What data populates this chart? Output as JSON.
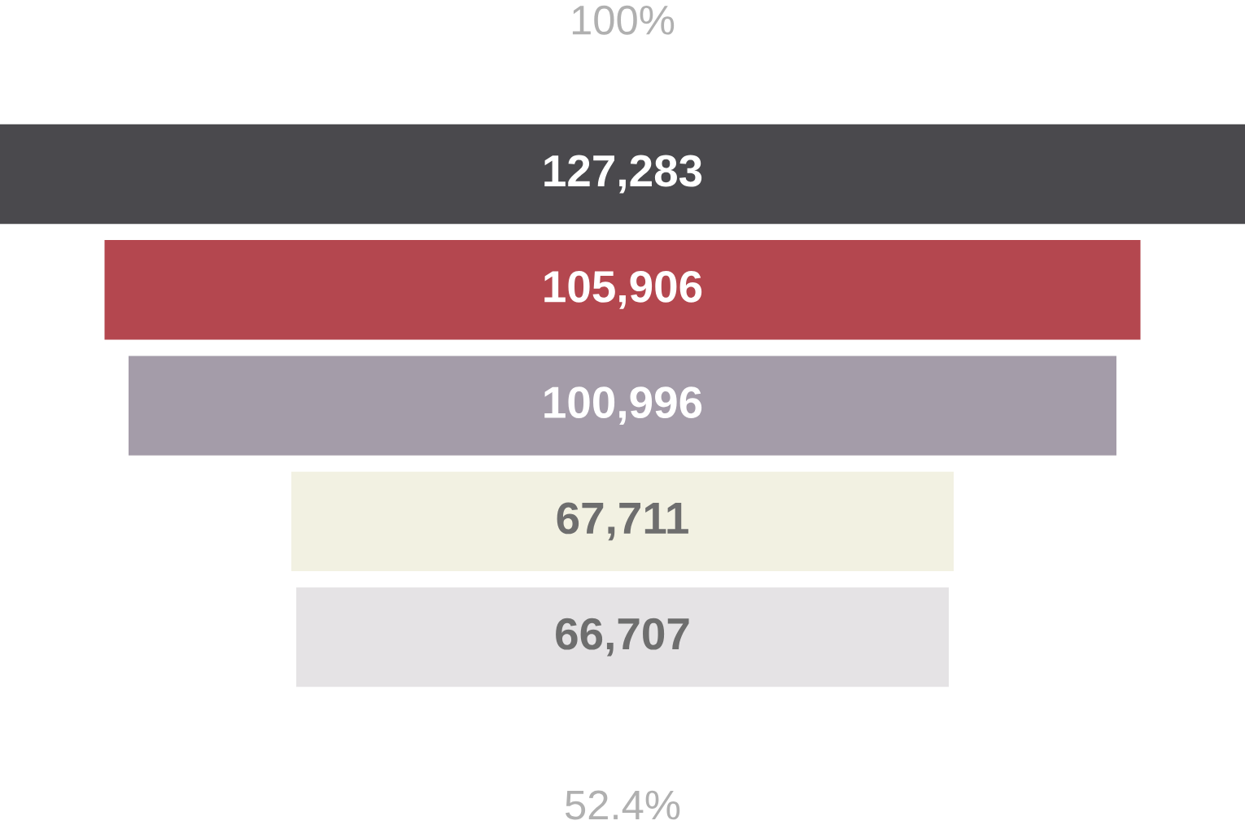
{
  "chart_data": {
    "type": "other",
    "values": [
      127283,
      105906,
      100996,
      67711,
      66707
    ],
    "value_labels": [
      "127,283",
      "105,906",
      "100,996",
      "67,711",
      "66,707"
    ],
    "colors": [
      "#4a494d",
      "#b4474f",
      "#a49ca9",
      "#f2f1e2",
      "#e5e3e5"
    ],
    "annotations": [
      "100%",
      "52.4%"
    ]
  }
}
